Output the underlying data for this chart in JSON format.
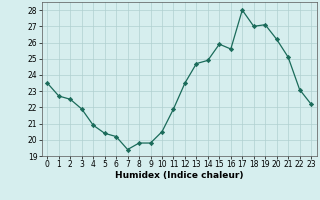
{
  "x": [
    0,
    1,
    2,
    3,
    4,
    5,
    6,
    7,
    8,
    9,
    10,
    11,
    12,
    13,
    14,
    15,
    16,
    17,
    18,
    19,
    20,
    21,
    22,
    23
  ],
  "y": [
    23.5,
    22.7,
    22.5,
    21.9,
    20.9,
    20.4,
    20.2,
    19.4,
    19.8,
    19.8,
    20.5,
    21.9,
    23.5,
    24.7,
    24.9,
    25.9,
    25.6,
    28.0,
    27.0,
    27.1,
    26.2,
    25.1,
    23.1,
    22.2
  ],
  "line_color": "#1a6b5a",
  "marker": "D",
  "marker_size": 2.2,
  "bg_color": "#d6eeee",
  "grid_color": "#b0d0d0",
  "xlabel": "Humidex (Indice chaleur)",
  "ylim": [
    19,
    28.5
  ],
  "yticks": [
    19,
    20,
    21,
    22,
    23,
    24,
    25,
    26,
    27,
    28
  ],
  "xticks": [
    0,
    1,
    2,
    3,
    4,
    5,
    6,
    7,
    8,
    9,
    10,
    11,
    12,
    13,
    14,
    15,
    16,
    17,
    18,
    19,
    20,
    21,
    22,
    23
  ],
  "tick_fontsize": 5.5,
  "xlabel_fontsize": 6.5,
  "line_width": 0.9
}
